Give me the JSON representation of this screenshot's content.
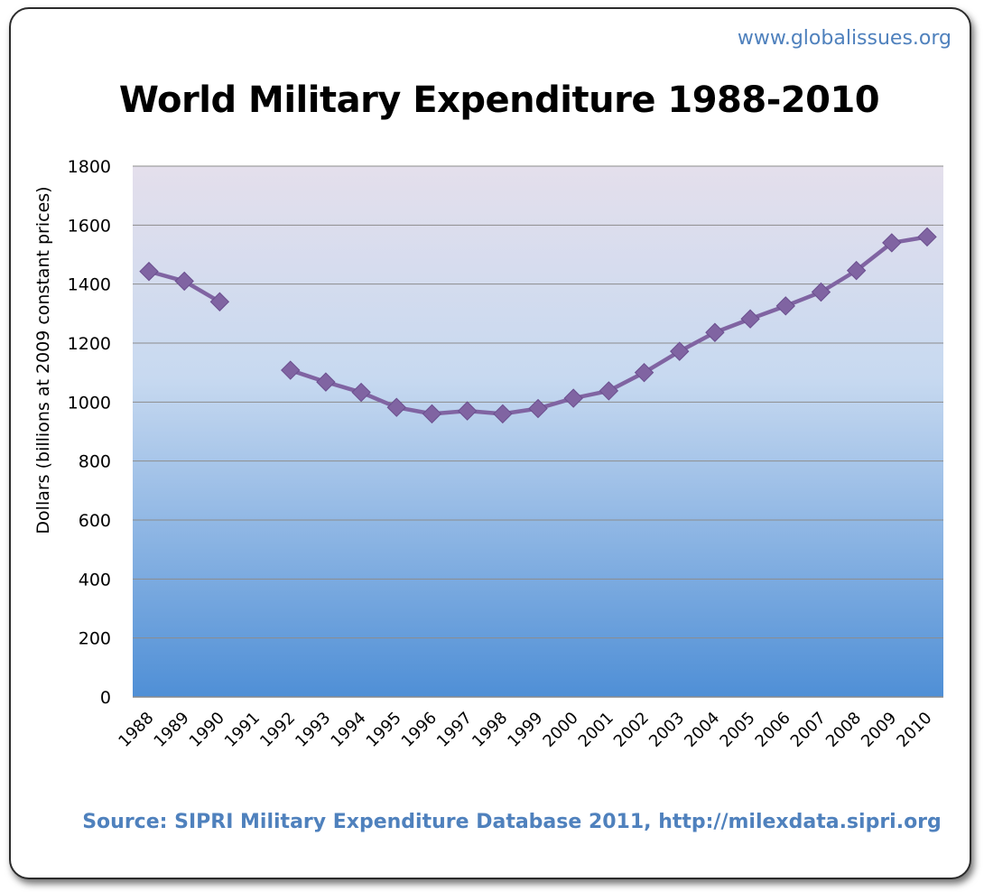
{
  "header": {
    "site": "www.globalissues.org"
  },
  "chart_data": {
    "type": "line",
    "title": "World Military Expenditure 1988-2010",
    "xlabel": "",
    "ylabel": "Dollars (billions at 2009 constant prices)",
    "ylim": [
      0,
      1800
    ],
    "yticks": [
      0,
      200,
      400,
      600,
      800,
      1000,
      1200,
      1400,
      1600,
      1800
    ],
    "grid": true,
    "categories": [
      "1988",
      "1989",
      "1990",
      "1991",
      "1992",
      "1993",
      "1994",
      "1995",
      "1996",
      "1997",
      "1998",
      "1999",
      "2000",
      "2001",
      "2002",
      "2003",
      "2004",
      "2005",
      "2006",
      "2007",
      "2008",
      "2009",
      "2010"
    ],
    "series": [
      {
        "values": [
          1443,
          1410,
          1340,
          null,
          1108,
          1068,
          1033,
          982,
          960,
          970,
          960,
          978,
          1013,
          1038,
          1100,
          1172,
          1236,
          1282,
          1326,
          1373,
          1446,
          1540,
          1560
        ],
        "color": "#8064a2"
      }
    ],
    "source": "Source: SIPRI Military Expenditure Database 2011, http://milexdata.sipri.org"
  },
  "colors": {
    "plot_top": "#e4dfec",
    "plot_mid": "#c5d9f1",
    "plot_bottom": "#4f8fd6",
    "accent": "#4f81bd",
    "line": "#7b5e9f"
  }
}
